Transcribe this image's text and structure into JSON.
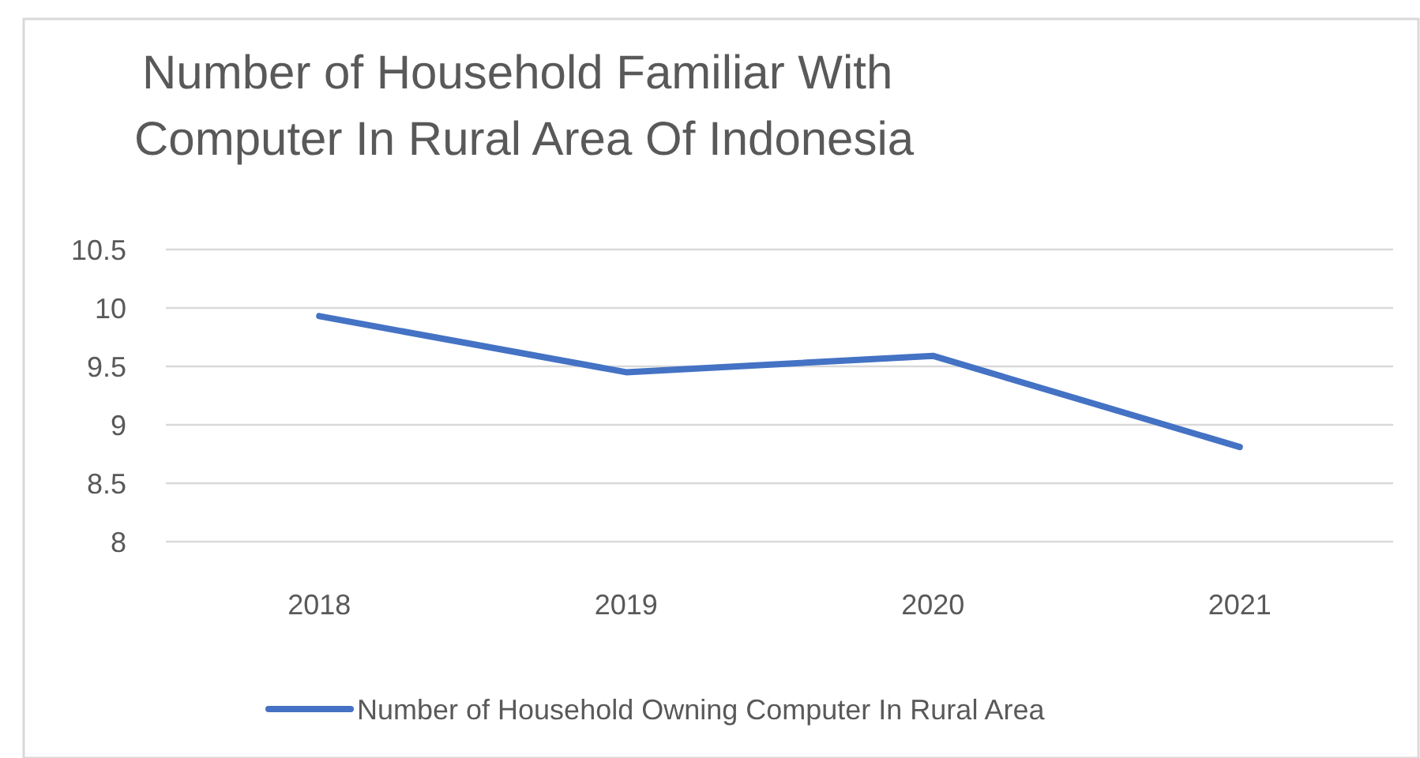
{
  "chart_data": {
    "type": "line",
    "title": "Number of Household Familiar With Computer In Rural Area Of Indonesia",
    "categories": [
      "2018",
      "2019",
      "2020",
      "2021"
    ],
    "series": [
      {
        "name": "Number of Household Owning Computer In Rural Area",
        "color": "#4472c4",
        "values": [
          9.93,
          9.45,
          9.59,
          8.81
        ]
      }
    ],
    "ylim": [
      8,
      10.5
    ],
    "yticks": [
      8,
      8.5,
      9,
      9.5,
      10,
      10.5
    ],
    "grid": "y",
    "legend": "bottom",
    "marker": "none",
    "line_style": "solid"
  }
}
